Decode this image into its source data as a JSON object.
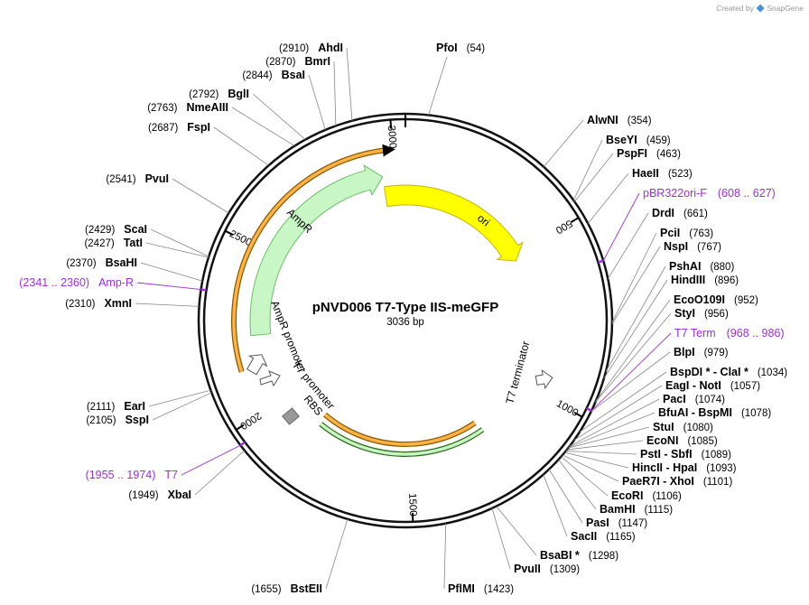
{
  "credit": {
    "prefix": "Created by",
    "brand": "SnapGene"
  },
  "plasmid": {
    "name": "pNVD006 T7-Type IIS-meGFP",
    "length_label": "3036 bp",
    "length": 3036
  },
  "ticks": [
    {
      "bp": 500,
      "label": "500"
    },
    {
      "bp": 1000,
      "label": "1000"
    },
    {
      "bp": 1500,
      "label": "1500"
    },
    {
      "bp": 2000,
      "label": "2000"
    },
    {
      "bp": 2500,
      "label": "2500"
    },
    {
      "bp": 3000,
      "label": "3000"
    }
  ],
  "features": [
    {
      "name": "ori",
      "start": 2870,
      "end": 3036,
      "wrap_end": 520,
      "color": "#ffff00"
    },
    {
      "name": "AmpR",
      "color": "#c8f7c5"
    },
    {
      "name": "AmpR promoter"
    },
    {
      "name": "T7 promoter"
    },
    {
      "name": "RBS"
    },
    {
      "name": "T7 terminator"
    }
  ],
  "sites_right": [
    {
      "name": "PfoI",
      "pos": "(54)",
      "bp": 54
    },
    {
      "name": "AlwNI",
      "pos": "(354)",
      "bp": 354
    },
    {
      "name": "BseYI",
      "pos": "(459)",
      "bp": 459
    },
    {
      "name": "PspFI",
      "pos": "(463)",
      "bp": 463
    },
    {
      "name": "HaeII",
      "pos": "(523)",
      "bp": 523
    },
    {
      "name": "DrdI",
      "pos": "(661)",
      "bp": 661
    },
    {
      "name": "PciI",
      "pos": "(763)",
      "bp": 763
    },
    {
      "name": "NspI",
      "pos": "(767)",
      "bp": 767
    },
    {
      "name": "PshAI",
      "pos": "(880)",
      "bp": 880
    },
    {
      "name": "HindIII",
      "pos": "(896)",
      "bp": 896
    },
    {
      "name": "EcoO109I",
      "pos": "(952)",
      "bp": 952
    },
    {
      "name": "StyI",
      "pos": "(956)",
      "bp": 956
    },
    {
      "name": "BlpI",
      "pos": "(979)",
      "bp": 979
    },
    {
      "name": "BspDI *  -  ClaI *",
      "pos": "(1034)",
      "bp": 1034
    },
    {
      "name": "EagI  -  NotI",
      "pos": "(1057)",
      "bp": 1057
    },
    {
      "name": "PacI",
      "pos": "(1074)",
      "bp": 1074
    },
    {
      "name": "BfuAI  -  BspMI",
      "pos": "(1078)",
      "bp": 1078
    },
    {
      "name": "StuI",
      "pos": "(1080)",
      "bp": 1080
    },
    {
      "name": "EcoNI",
      "pos": "(1085)",
      "bp": 1085
    },
    {
      "name": "PstI  -  SbfI",
      "pos": "(1089)",
      "bp": 1089
    },
    {
      "name": "HincII  -  HpaI",
      "pos": "(1093)",
      "bp": 1093
    },
    {
      "name": "PaeR7I  -  XhoI",
      "pos": "(1101)",
      "bp": 1101
    },
    {
      "name": "EcoRI",
      "pos": "(1106)",
      "bp": 1106
    },
    {
      "name": "BamHI",
      "pos": "(1115)",
      "bp": 1115
    },
    {
      "name": "PasI",
      "pos": "(1147)",
      "bp": 1147
    },
    {
      "name": "SacII",
      "pos": "(1165)",
      "bp": 1165
    },
    {
      "name": "BsaBI *",
      "pos": "(1298)",
      "bp": 1298
    },
    {
      "name": "PvuII",
      "pos": "(1309)",
      "bp": 1309
    },
    {
      "name": "PflMI",
      "pos": "(1423)",
      "bp": 1423
    }
  ],
  "sites_left": [
    {
      "name": "AhdI",
      "pos": "(2910)",
      "bp": 2910
    },
    {
      "name": "BmrI",
      "pos": "(2870)",
      "bp": 2870
    },
    {
      "name": "BsaI",
      "pos": "(2844)",
      "bp": 2844
    },
    {
      "name": "BglI",
      "pos": "(2792)",
      "bp": 2792
    },
    {
      "name": "NmeAIII",
      "pos": "(2763)",
      "bp": 2763
    },
    {
      "name": "FspI",
      "pos": "(2687)",
      "bp": 2687
    },
    {
      "name": "PvuI",
      "pos": "(2541)",
      "bp": 2541
    },
    {
      "name": "ScaI",
      "pos": "(2429)",
      "bp": 2429
    },
    {
      "name": "TatI",
      "pos": "(2427)",
      "bp": 2427
    },
    {
      "name": "BsaHI",
      "pos": "(2370)",
      "bp": 2370
    },
    {
      "name": "XmnI",
      "pos": "(2310)",
      "bp": 2310
    },
    {
      "name": "EarI",
      "pos": "(2111)",
      "bp": 2111
    },
    {
      "name": "SspI",
      "pos": "(2105)",
      "bp": 2105
    },
    {
      "name": "XbaI",
      "pos": "(1949)",
      "bp": 1949
    },
    {
      "name": "BstEII",
      "pos": "(1655)",
      "bp": 1655
    }
  ],
  "primers": [
    {
      "name": "pBR322ori-F",
      "range": "(608 .. 627)",
      "bp": 617
    },
    {
      "name": "T7 Term",
      "range": "(968 .. 986)",
      "bp": 977
    },
    {
      "name": "Amp-R",
      "range": "(2341 .. 2360)",
      "bp": 2350
    },
    {
      "name": "T7",
      "range": "(1955 .. 1974)",
      "bp": 1964
    }
  ]
}
